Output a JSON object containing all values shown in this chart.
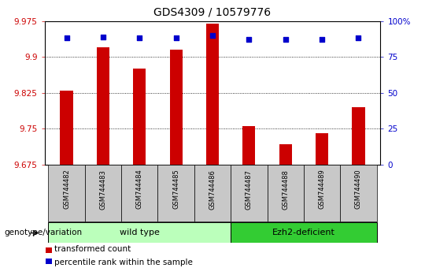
{
  "title": "GDS4309 / 10579776",
  "samples": [
    "GSM744482",
    "GSM744483",
    "GSM744484",
    "GSM744485",
    "GSM744486",
    "GSM744487",
    "GSM744488",
    "GSM744489",
    "GSM744490"
  ],
  "bar_values": [
    9.83,
    9.92,
    9.875,
    9.915,
    9.97,
    9.755,
    9.718,
    9.74,
    9.795
  ],
  "percentile_values": [
    88,
    89,
    88,
    88,
    90,
    87,
    87,
    87,
    88
  ],
  "ylim_left": [
    9.675,
    9.975
  ],
  "ylim_right": [
    0,
    100
  ],
  "yticks_left": [
    9.675,
    9.75,
    9.825,
    9.9,
    9.975
  ],
  "yticks_right": [
    0,
    25,
    50,
    75,
    100
  ],
  "bar_color": "#cc0000",
  "dot_color": "#0000cc",
  "group1_label": "wild type",
  "group2_label": "Ezh2-deficient",
  "group1_indices": [
    0,
    1,
    2,
    3,
    4
  ],
  "group2_indices": [
    5,
    6,
    7,
    8
  ],
  "genotype_label": "genotype/variation",
  "legend_bar_label": "transformed count",
  "legend_dot_label": "percentile rank within the sample",
  "group1_color": "#bbffbb",
  "group2_color": "#33cc33",
  "tick_area_color": "#c8c8c8",
  "base_value": 9.675,
  "title_fontsize": 10,
  "tick_fontsize": 7.5,
  "bar_width": 0.35
}
